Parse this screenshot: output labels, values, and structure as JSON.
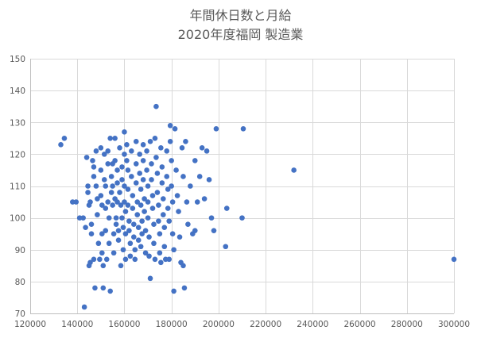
{
  "chart_data": {
    "type": "scatter",
    "title_line1": "年間休日数と月給",
    "title_line2": "2020年度福岡  製造業",
    "xlabel": "",
    "ylabel": "",
    "xlim": [
      120000,
      300000
    ],
    "ylim": [
      70,
      150
    ],
    "x_ticks": [
      120000,
      140000,
      160000,
      180000,
      200000,
      220000,
      240000,
      260000,
      280000,
      300000
    ],
    "y_ticks": [
      70,
      80,
      90,
      100,
      110,
      120,
      130,
      140,
      150
    ],
    "grid": true,
    "legend": "none",
    "marker_color": "#4472c4",
    "points": [
      [
        133000,
        123
      ],
      [
        134500,
        125
      ],
      [
        138000,
        105
      ],
      [
        139500,
        105
      ],
      [
        141000,
        100
      ],
      [
        142500,
        100
      ],
      [
        143000,
        72
      ],
      [
        143500,
        97
      ],
      [
        144000,
        119
      ],
      [
        144500,
        110
      ],
      [
        144500,
        108
      ],
      [
        145000,
        104
      ],
      [
        145500,
        86
      ],
      [
        145000,
        85
      ],
      [
        145500,
        105
      ],
      [
        146000,
        98
      ],
      [
        146000,
        95
      ],
      [
        146500,
        118
      ],
      [
        147000,
        116
      ],
      [
        147000,
        113
      ],
      [
        147000,
        87
      ],
      [
        147500,
        78
      ],
      [
        148000,
        121
      ],
      [
        148000,
        110
      ],
      [
        148500,
        106
      ],
      [
        148500,
        101
      ],
      [
        149000,
        92
      ],
      [
        149500,
        87
      ],
      [
        150000,
        122
      ],
      [
        150000,
        115
      ],
      [
        150000,
        107
      ],
      [
        150500,
        104
      ],
      [
        150500,
        95
      ],
      [
        150500,
        89
      ],
      [
        151000,
        78
      ],
      [
        151000,
        85
      ],
      [
        151500,
        120
      ],
      [
        151500,
        112
      ],
      [
        152000,
        110
      ],
      [
        152000,
        103
      ],
      [
        152000,
        96
      ],
      [
        152500,
        87
      ],
      [
        153000,
        121
      ],
      [
        153000,
        117
      ],
      [
        153000,
        105
      ],
      [
        153500,
        100
      ],
      [
        153500,
        92
      ],
      [
        154000,
        77
      ],
      [
        154000,
        125
      ],
      [
        154500,
        113
      ],
      [
        154500,
        108
      ],
      [
        155000,
        117
      ],
      [
        155000,
        110
      ],
      [
        155000,
        104
      ],
      [
        155500,
        95
      ],
      [
        155500,
        89
      ],
      [
        156000,
        125
      ],
      [
        156000,
        118
      ],
      [
        156000,
        106
      ],
      [
        156500,
        100
      ],
      [
        156500,
        98
      ],
      [
        157000,
        115
      ],
      [
        157000,
        111
      ],
      [
        157000,
        105
      ],
      [
        157500,
        96
      ],
      [
        157500,
        93
      ],
      [
        158000,
        122
      ],
      [
        158000,
        108
      ],
      [
        158500,
        104
      ],
      [
        158500,
        85
      ],
      [
        159000,
        116
      ],
      [
        159000,
        112
      ],
      [
        159000,
        100
      ],
      [
        159500,
        97
      ],
      [
        159500,
        90
      ],
      [
        160000,
        127
      ],
      [
        160000,
        120
      ],
      [
        160000,
        110
      ],
      [
        160000,
        105
      ],
      [
        160500,
        102
      ],
      [
        160500,
        95
      ],
      [
        160500,
        87
      ],
      [
        161000,
        123
      ],
      [
        161000,
        118
      ],
      [
        161500,
        115
      ],
      [
        161500,
        109
      ],
      [
        161500,
        104
      ],
      [
        162000,
        99
      ],
      [
        162000,
        96
      ],
      [
        162500,
        92
      ],
      [
        162500,
        88
      ],
      [
        163000,
        121
      ],
      [
        163000,
        113
      ],
      [
        163500,
        107
      ],
      [
        163500,
        103
      ],
      [
        164000,
        98
      ],
      [
        164000,
        94
      ],
      [
        164500,
        90
      ],
      [
        164500,
        87
      ],
      [
        165000,
        124
      ],
      [
        165000,
        117
      ],
      [
        165000,
        111
      ],
      [
        165500,
        105
      ],
      [
        165500,
        101
      ],
      [
        166000,
        97
      ],
      [
        166000,
        93
      ],
      [
        166500,
        120
      ],
      [
        166500,
        114
      ],
      [
        167000,
        109
      ],
      [
        167000,
        104
      ],
      [
        167000,
        91
      ],
      [
        167500,
        99
      ],
      [
        167500,
        95
      ],
      [
        168000,
        123
      ],
      [
        168000,
        118
      ],
      [
        168000,
        112
      ],
      [
        168500,
        106
      ],
      [
        168500,
        102
      ],
      [
        169000,
        96
      ],
      [
        169000,
        89
      ],
      [
        169500,
        121
      ],
      [
        169500,
        115
      ],
      [
        170000,
        110
      ],
      [
        170000,
        105
      ],
      [
        170000,
        100
      ],
      [
        170500,
        94
      ],
      [
        170500,
        88
      ],
      [
        171000,
        81
      ],
      [
        171000,
        124
      ],
      [
        171500,
        117
      ],
      [
        171500,
        112
      ],
      [
        172000,
        107
      ],
      [
        172000,
        103
      ],
      [
        172500,
        98
      ],
      [
        172500,
        92
      ],
      [
        173000,
        87
      ],
      [
        173000,
        125
      ],
      [
        173500,
        135
      ],
      [
        173500,
        119
      ],
      [
        174000,
        114
      ],
      [
        174000,
        108
      ],
      [
        174500,
        104
      ],
      [
        174500,
        99
      ],
      [
        175000,
        95
      ],
      [
        175000,
        89
      ],
      [
        175500,
        86
      ],
      [
        175500,
        122
      ],
      [
        176000,
        116
      ],
      [
        176000,
        111
      ],
      [
        176500,
        106
      ],
      [
        176500,
        101
      ],
      [
        177000,
        97
      ],
      [
        177000,
        91
      ],
      [
        177500,
        87
      ],
      [
        178000,
        121
      ],
      [
        178000,
        113
      ],
      [
        178500,
        109
      ],
      [
        178500,
        103
      ],
      [
        179000,
        99
      ],
      [
        179000,
        87
      ],
      [
        179500,
        129
      ],
      [
        179500,
        124
      ],
      [
        180000,
        118
      ],
      [
        180000,
        110
      ],
      [
        180500,
        105
      ],
      [
        180500,
        95
      ],
      [
        181000,
        90
      ],
      [
        181000,
        77
      ],
      [
        181500,
        128
      ],
      [
        182000,
        115
      ],
      [
        182500,
        107
      ],
      [
        183000,
        102
      ],
      [
        183500,
        94
      ],
      [
        184000,
        86
      ],
      [
        184500,
        122
      ],
      [
        185000,
        113
      ],
      [
        185000,
        85
      ],
      [
        185500,
        78
      ],
      [
        186000,
        124
      ],
      [
        186500,
        105
      ],
      [
        187000,
        98
      ],
      [
        188000,
        110
      ],
      [
        189000,
        95
      ],
      [
        190000,
        118
      ],
      [
        190000,
        96
      ],
      [
        191000,
        105
      ],
      [
        192000,
        113
      ],
      [
        193000,
        122
      ],
      [
        194000,
        106
      ],
      [
        195000,
        121
      ],
      [
        196000,
        112
      ],
      [
        197000,
        100
      ],
      [
        198000,
        96
      ],
      [
        199000,
        128
      ],
      [
        203000,
        91
      ],
      [
        203500,
        103
      ],
      [
        210000,
        100
      ],
      [
        210500,
        128
      ],
      [
        232000,
        115
      ],
      [
        300000,
        87
      ]
    ]
  }
}
